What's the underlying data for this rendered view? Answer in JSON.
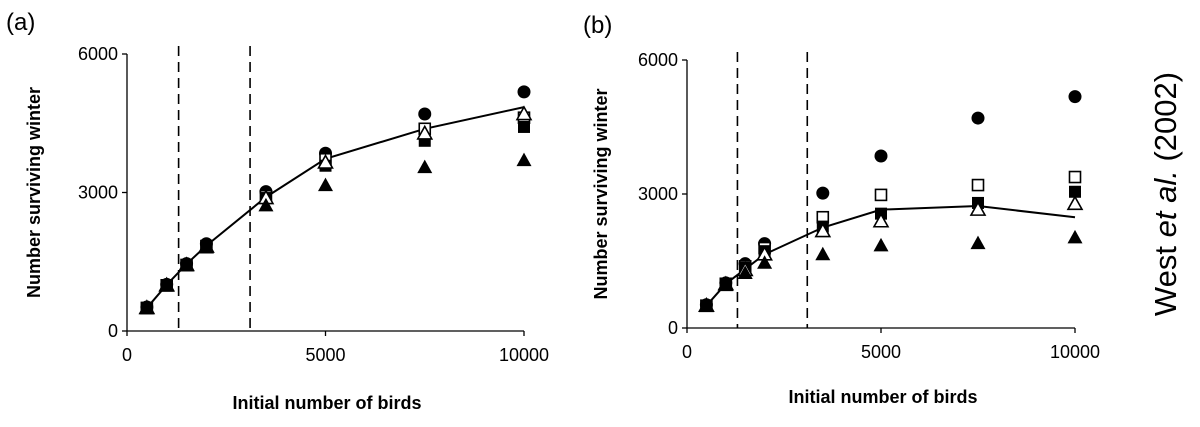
{
  "chart_data": [
    {
      "type": "scatter",
      "panel_label": "(a)",
      "xlabel": "Initial number of birds",
      "ylabel": "Number surviving winter",
      "xlim": [
        0,
        10000
      ],
      "ylim": [
        0,
        6000
      ],
      "xticks": [
        "0",
        "5000",
        "10000"
      ],
      "yticks": [
        "0",
        "3000",
        "6000"
      ],
      "vlines_dashed": [
        1300,
        3100
      ],
      "series": [
        {
          "marker": "filled-circle",
          "x": [
            500,
            1000,
            1500,
            2000,
            3500,
            5000,
            7500,
            10000
          ],
          "y": [
            520,
            1010,
            1460,
            1890,
            3020,
            3850,
            4700,
            5180
          ]
        },
        {
          "marker": "open-square",
          "x": [
            500,
            1000,
            1500,
            2000,
            3500,
            5000,
            7500,
            10000
          ],
          "y": [
            500,
            990,
            1430,
            1840,
            2920,
            3720,
            4380,
            4620
          ]
        },
        {
          "marker": "filled-square",
          "x": [
            500,
            1000,
            1500,
            2000,
            3500,
            5000,
            7500,
            10000
          ],
          "y": [
            500,
            990,
            1430,
            1830,
            2880,
            3580,
            4120,
            4420
          ]
        },
        {
          "marker": "open-triangle",
          "x": [
            500,
            1000,
            1500,
            2000,
            3500,
            5000,
            7500,
            10000
          ],
          "y": [
            500,
            990,
            1430,
            1830,
            2880,
            3650,
            4280,
            4700
          ]
        },
        {
          "marker": "filled-triangle",
          "x": [
            500,
            1000,
            1500,
            2000,
            3500,
            5000,
            7500,
            10000
          ],
          "y": [
            490,
            980,
            1420,
            1810,
            2720,
            3160,
            3550,
            3700
          ]
        }
      ],
      "line": {
        "x": [
          500,
          1000,
          1500,
          2000,
          3500,
          5000,
          7500,
          10000
        ],
        "y": [
          500,
          1000,
          1450,
          1850,
          2900,
          3730,
          4380,
          4850
        ]
      }
    },
    {
      "type": "scatter",
      "panel_label": "(b)",
      "xlabel": "Initial number of birds",
      "ylabel": "Number surviving winter",
      "xlim": [
        0,
        10000
      ],
      "ylim": [
        0,
        6000
      ],
      "xticks": [
        "0",
        "5000",
        "10000"
      ],
      "yticks": [
        "0",
        "3000",
        "6000"
      ],
      "vlines_dashed": [
        1300,
        3100
      ],
      "series": [
        {
          "marker": "filled-circle",
          "x": [
            500,
            1000,
            1500,
            2000,
            3500,
            5000,
            7500,
            10000
          ],
          "y": [
            520,
            1010,
            1440,
            1890,
            3020,
            3850,
            4700,
            5180
          ]
        },
        {
          "marker": "open-square",
          "x": [
            500,
            1000,
            1500,
            2000,
            3500,
            5000,
            7500,
            10000
          ],
          "y": [
            500,
            990,
            1380,
            1790,
            2480,
            2980,
            3200,
            3380
          ]
        },
        {
          "marker": "filled-square",
          "x": [
            500,
            1000,
            1500,
            2000,
            3500,
            5000,
            7500,
            10000
          ],
          "y": [
            500,
            990,
            1350,
            1720,
            2270,
            2560,
            2800,
            3050
          ]
        },
        {
          "marker": "open-triangle",
          "x": [
            500,
            1000,
            1500,
            2000,
            3500,
            5000,
            7500,
            10000
          ],
          "y": [
            500,
            980,
            1300,
            1650,
            2170,
            2390,
            2650,
            2780
          ]
        },
        {
          "marker": "filled-triangle",
          "x": [
            500,
            1000,
            1500,
            2000,
            3500,
            5000,
            7500,
            10000
          ],
          "y": [
            490,
            960,
            1230,
            1460,
            1650,
            1850,
            1900,
            2030
          ]
        }
      ],
      "line": {
        "x": [
          500,
          1000,
          1500,
          2000,
          3500,
          5000,
          7500,
          10000
        ],
        "y": [
          500,
          990,
          1320,
          1650,
          2250,
          2650,
          2730,
          2480
        ]
      }
    }
  ],
  "credit": {
    "prefix": "West ",
    "italic": "et al.",
    "suffix": " (2002)"
  }
}
